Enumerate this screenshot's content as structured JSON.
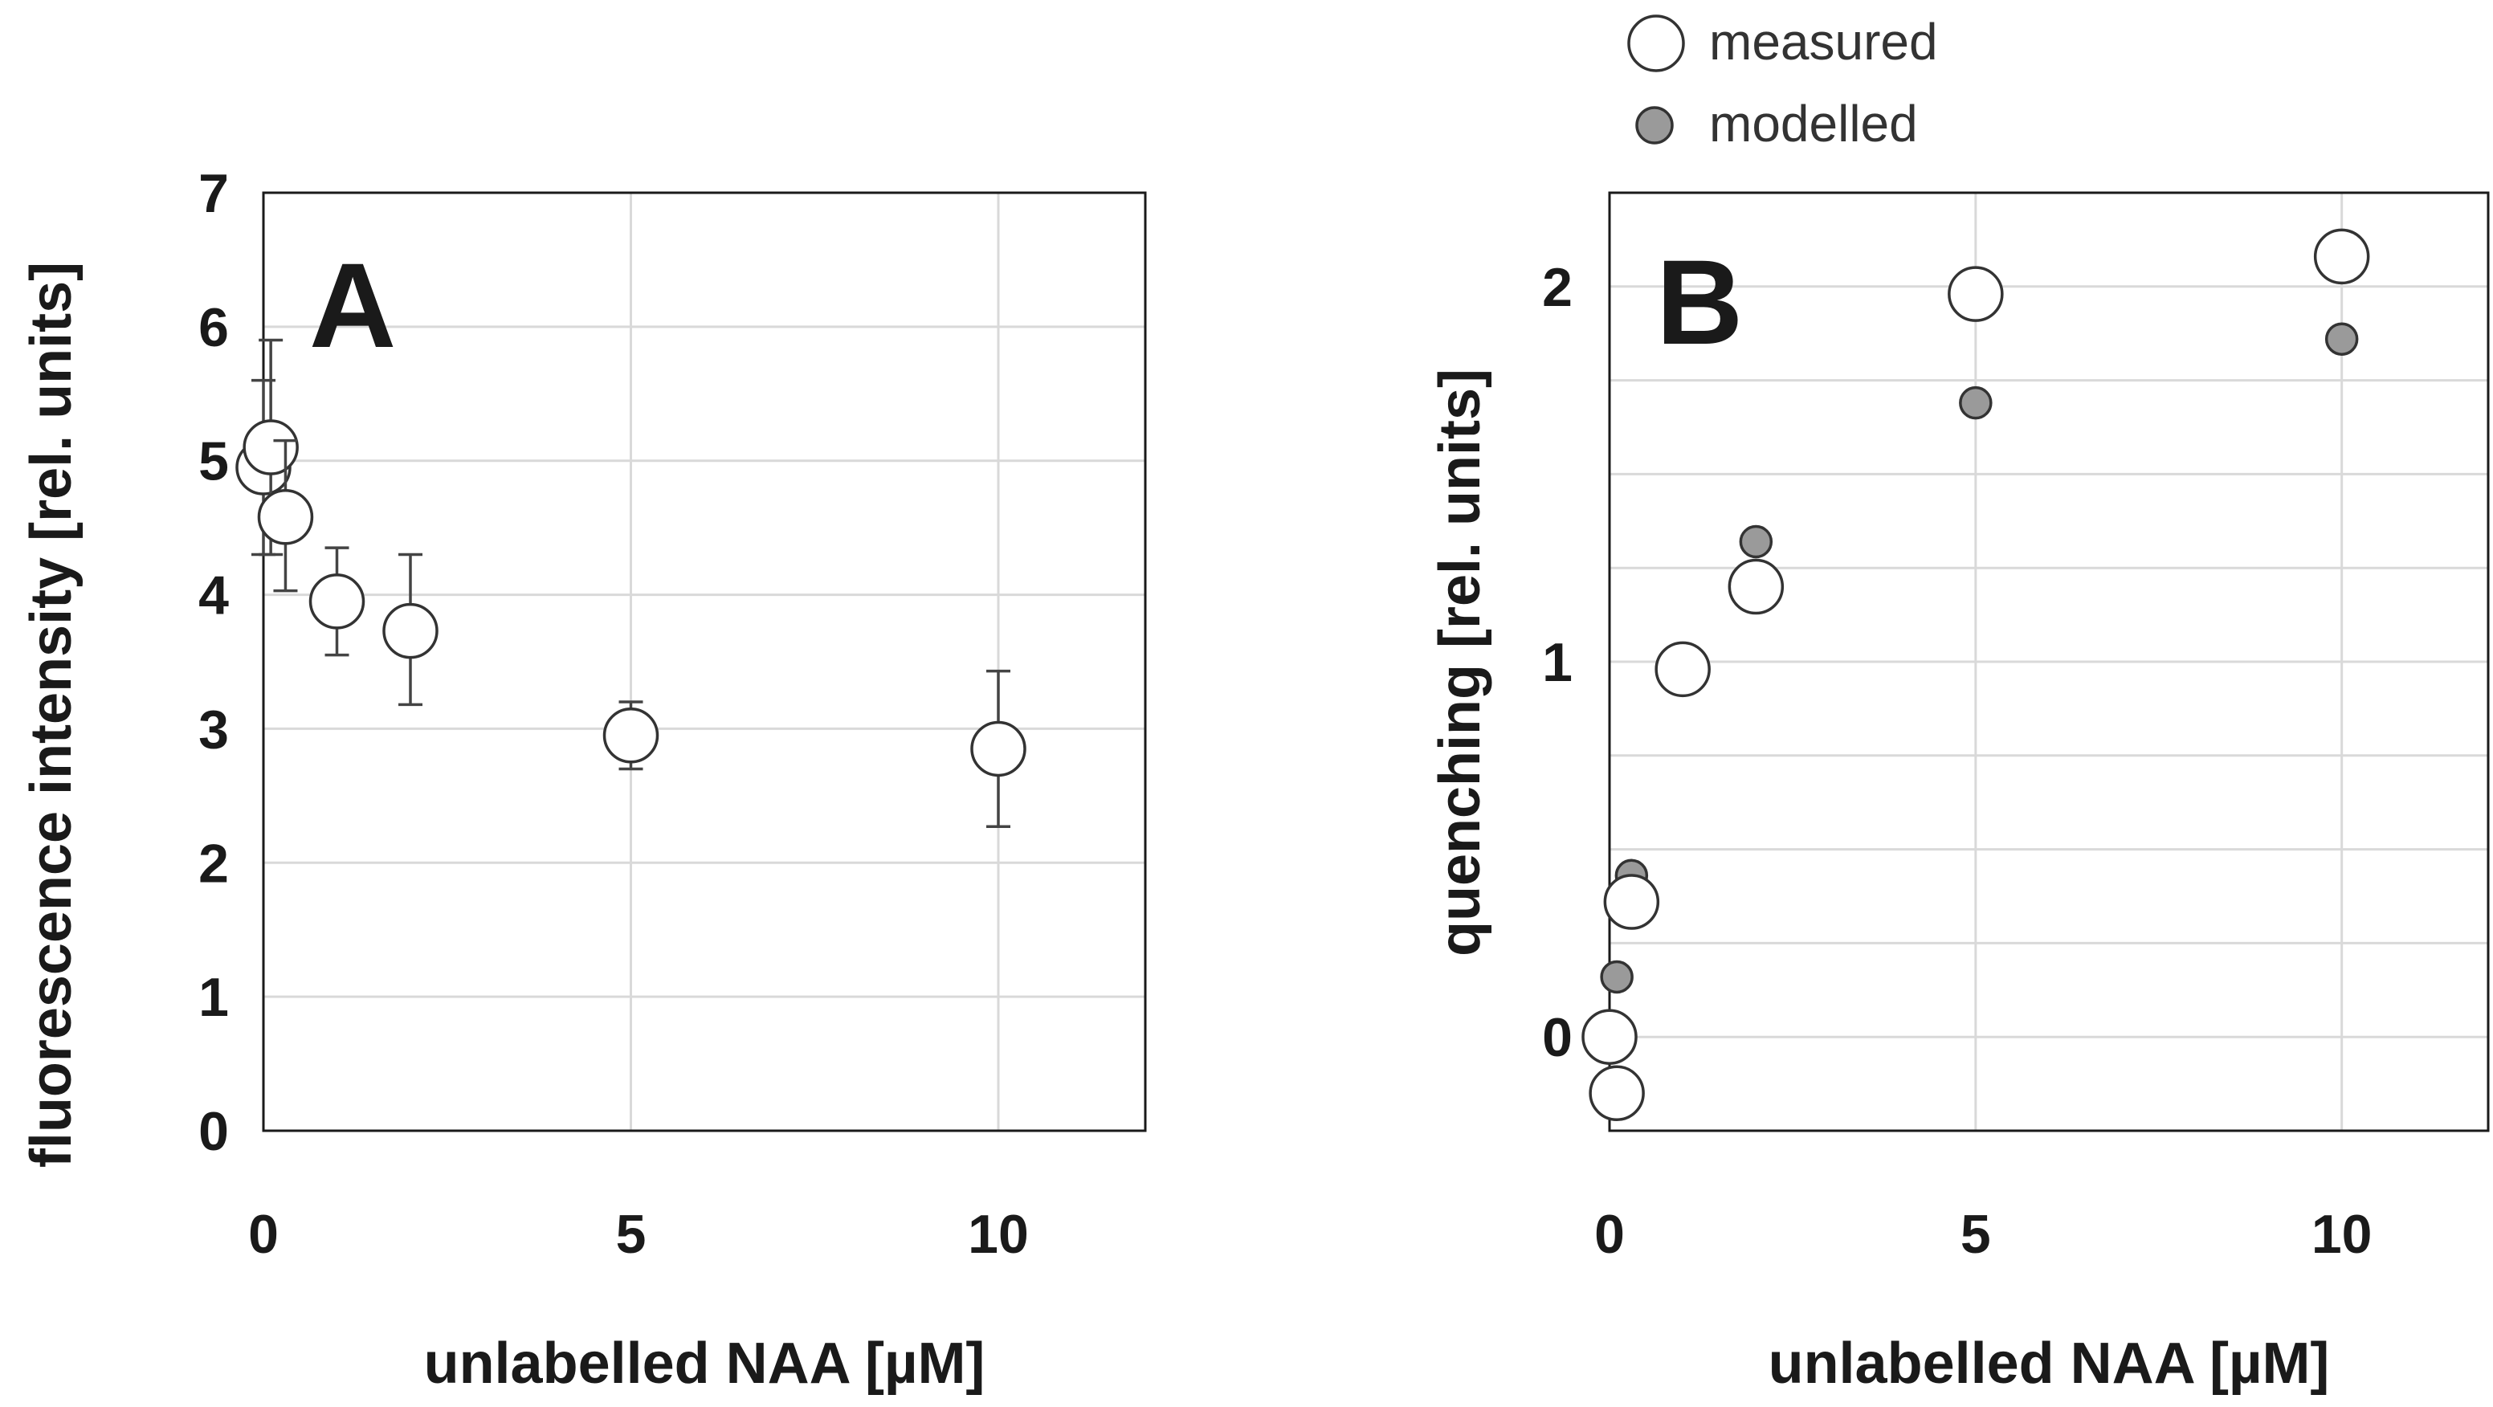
{
  "colors": {
    "measured_fill": "#ffffff",
    "modelled_fill": "#9a9a9a",
    "marker_stroke": "#333333",
    "grid": "#d9d9d9",
    "text": "#1a1a1a"
  },
  "legend": {
    "measured": "measured",
    "modelled": "modelled"
  },
  "chart_data": [
    {
      "panel": "A",
      "type": "scatter",
      "xlabel": "unlabelled NAA [µM]",
      "ylabel": "fluorescence intensity [rel. units]",
      "xlim": [
        0,
        12
      ],
      "ylim": [
        0,
        7
      ],
      "x_ticks": [
        0,
        5,
        10
      ],
      "y_ticks": [
        0,
        1,
        2,
        3,
        4,
        5,
        6,
        7
      ],
      "grid": true,
      "series": [
        {
          "name": "measured",
          "points": [
            {
              "x": 0,
              "y": 4.95,
              "err_low": 4.3,
              "err_high": 5.6
            },
            {
              "x": 0.1,
              "y": 5.1,
              "err_low": 4.3,
              "err_high": 5.9
            },
            {
              "x": 0.3,
              "y": 4.58,
              "err_low": 4.03,
              "err_high": 5.15
            },
            {
              "x": 1,
              "y": 3.95,
              "err_low": 3.55,
              "err_high": 4.35
            },
            {
              "x": 2,
              "y": 3.73,
              "err_low": 3.18,
              "err_high": 4.3
            },
            {
              "x": 5,
              "y": 2.95,
              "err_low": 2.7,
              "err_high": 3.2
            },
            {
              "x": 10,
              "y": 2.85,
              "err_low": 2.27,
              "err_high": 3.43
            }
          ]
        }
      ]
    },
    {
      "panel": "B",
      "type": "scatter",
      "xlabel": "unlabelled NAA [µM]",
      "ylabel": "quenching [rel. units]",
      "xlim": [
        0,
        12
      ],
      "ylim": [
        -0.25,
        2.25
      ],
      "x_ticks": [
        0,
        5,
        10
      ],
      "y_ticks": [
        0,
        1,
        2
      ],
      "grid": true,
      "legend_position": "top",
      "series": [
        {
          "name": "measured",
          "points": [
            {
              "x": 0,
              "y": 0.0
            },
            {
              "x": 0.1,
              "y": -0.15
            },
            {
              "x": 0.3,
              "y": 0.36
            },
            {
              "x": 1,
              "y": 0.98
            },
            {
              "x": 2,
              "y": 1.2
            },
            {
              "x": 5,
              "y": 1.98
            },
            {
              "x": 10,
              "y": 2.08
            }
          ]
        },
        {
          "name": "modelled",
          "points": [
            {
              "x": 0,
              "y": 0.0
            },
            {
              "x": 0.1,
              "y": 0.16
            },
            {
              "x": 0.3,
              "y": 0.43
            },
            {
              "x": 1,
              "y": 0.97
            },
            {
              "x": 2,
              "y": 1.32
            },
            {
              "x": 5,
              "y": 1.69
            },
            {
              "x": 10,
              "y": 1.86
            }
          ]
        }
      ]
    }
  ]
}
